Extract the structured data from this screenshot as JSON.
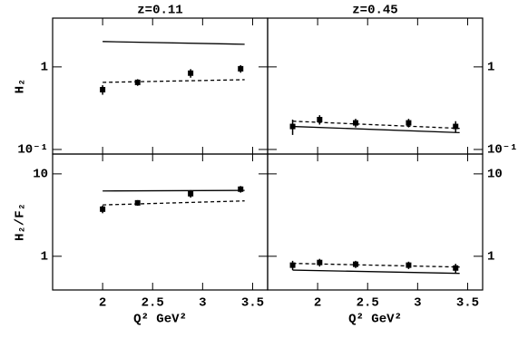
{
  "chart_data": [
    {
      "type": "scatter",
      "title": "z=0.11",
      "ylabel": "H₂",
      "log_y": true,
      "xlim": [
        1.5,
        3.65
      ],
      "xticks": [
        2,
        2.5,
        3,
        3.5
      ],
      "xtick_labels": false,
      "ylim": [
        0.088,
        3.9
      ],
      "yticks": [
        1,
        {
          "value": 0.1,
          "label": "10⁻¹"
        }
      ],
      "ytick_side": "left",
      "series": [
        {
          "style": "markers",
          "color": "#000000",
          "x": [
            2.0,
            2.35,
            2.88,
            3.38
          ],
          "values": [
            0.53,
            0.65,
            0.84,
            0.95
          ],
          "errors": [
            0.07,
            0.06,
            0.1,
            0.1
          ]
        },
        {
          "style": "solid",
          "color": "#000000",
          "x": [
            2.0,
            3.42
          ],
          "values": [
            2.03,
            1.88
          ]
        },
        {
          "style": "dashed",
          "color": "#000000",
          "x": [
            2.0,
            3.42
          ],
          "values": [
            0.65,
            0.7
          ]
        }
      ]
    },
    {
      "type": "scatter",
      "title": "z=0.45",
      "log_y": true,
      "xlim": [
        1.5,
        3.65
      ],
      "xticks": [
        2,
        2.5,
        3,
        3.5
      ],
      "xtick_labels": false,
      "ylim": [
        0.088,
        3.9
      ],
      "yticks": [
        1,
        {
          "value": 0.1,
          "label": "10⁻¹"
        }
      ],
      "ytick_side": "right",
      "series": [
        {
          "style": "markers",
          "color": "#000000",
          "x": [
            1.75,
            2.02,
            2.38,
            2.91,
            3.38
          ],
          "values": [
            0.19,
            0.23,
            0.21,
            0.21,
            0.19
          ],
          "errors": [
            0.04,
            0.03,
            0.025,
            0.025,
            0.03
          ]
        },
        {
          "style": "solid",
          "color": "#000000",
          "x": [
            1.75,
            3.42
          ],
          "values": [
            0.19,
            0.16
          ]
        },
        {
          "style": "dashed",
          "color": "#000000",
          "x": [
            1.75,
            3.42
          ],
          "values": [
            0.22,
            0.18
          ]
        }
      ]
    },
    {
      "type": "scatter",
      "ylabel": "H₂/F₂",
      "xlabel": "Q² GeV²",
      "log_y": true,
      "xlim": [
        1.5,
        3.65
      ],
      "xticks": [
        2,
        2.5,
        3,
        3.5
      ],
      "xtick_labels": true,
      "ylim": [
        0.39,
        17.4
      ],
      "yticks": [
        1,
        10
      ],
      "ytick_side": "left",
      "series": [
        {
          "style": "markers",
          "color": "#000000",
          "x": [
            2.0,
            2.35,
            2.88,
            3.38
          ],
          "values": [
            3.73,
            4.45,
            5.74,
            6.52
          ],
          "errors": [
            0.4,
            0.35,
            0.6,
            0.6
          ]
        },
        {
          "style": "solid",
          "color": "#000000",
          "x": [
            2.0,
            3.42
          ],
          "values": [
            6.2,
            6.3
          ]
        },
        {
          "style": "dashed",
          "color": "#000000",
          "x": [
            2.0,
            3.42
          ],
          "values": [
            4.2,
            4.7
          ]
        }
      ]
    },
    {
      "type": "scatter",
      "xlabel": "Q² GeV²",
      "log_y": true,
      "xlim": [
        1.5,
        3.65
      ],
      "xticks": [
        2,
        2.5,
        3,
        3.5
      ],
      "xtick_labels": true,
      "ylim": [
        0.39,
        17.4
      ],
      "yticks": [
        1,
        10
      ],
      "ytick_side": "right",
      "series": [
        {
          "style": "markers",
          "color": "#000000",
          "x": [
            1.75,
            2.02,
            2.38,
            2.91,
            3.38
          ],
          "values": [
            0.78,
            0.84,
            0.8,
            0.78,
            0.72
          ],
          "errors": [
            0.1,
            0.09,
            0.08,
            0.08,
            0.09
          ]
        },
        {
          "style": "solid",
          "color": "#000000",
          "x": [
            1.75,
            3.42
          ],
          "values": [
            0.68,
            0.62
          ]
        },
        {
          "style": "dashed",
          "color": "#000000",
          "x": [
            1.75,
            3.42
          ],
          "values": [
            0.82,
            0.74
          ]
        }
      ]
    }
  ]
}
